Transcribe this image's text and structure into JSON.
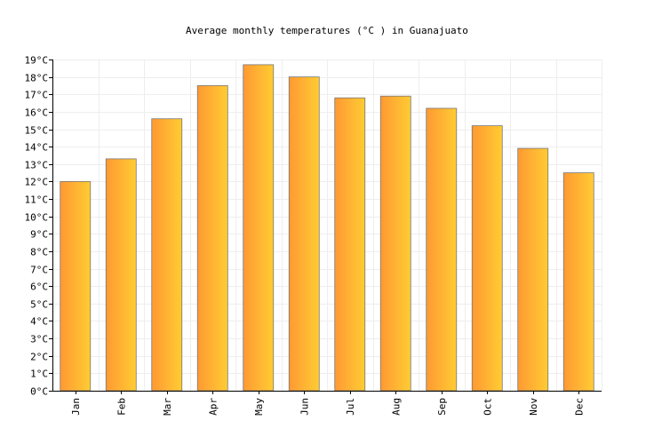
{
  "chart_data": {
    "type": "bar",
    "title": "Average monthly temperatures (°C ) in Guanajuato",
    "xlabel": "",
    "ylabel": "",
    "categories": [
      "Jan",
      "Feb",
      "Mar",
      "Apr",
      "May",
      "Jun",
      "Jul",
      "Aug",
      "Sep",
      "Oct",
      "Nov",
      "Dec"
    ],
    "values": [
      12.0,
      13.3,
      15.6,
      17.5,
      18.7,
      18.0,
      16.8,
      16.9,
      16.2,
      15.2,
      13.9,
      12.5
    ],
    "ylim": [
      0,
      19
    ],
    "yticks": [
      0,
      1,
      2,
      3,
      4,
      5,
      6,
      7,
      8,
      9,
      10,
      11,
      12,
      13,
      14,
      15,
      16,
      17,
      18,
      19
    ],
    "ytick_suffix": "°C",
    "grid": true,
    "colors": {
      "bar_left": "#ff9933",
      "bar_right": "#ffcc33",
      "bar_edge": "#777777",
      "grid": "#eeeeee"
    }
  }
}
